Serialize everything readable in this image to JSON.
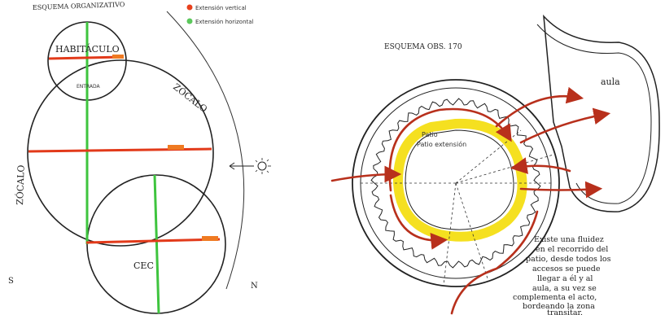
{
  "left_panel": {
    "title": "ESQUEMA ORGANIZATIVO",
    "legend": [
      {
        "label": "Extensión vertical",
        "color": "#e8401c"
      },
      {
        "label": "Extensión horizontal",
        "color": "#5cc85c"
      }
    ],
    "labels": {
      "habitaculo": "HABITÁCULO",
      "entrada": "ENTRADA",
      "zocalo_right": "ZÓCALO",
      "zocalo_left": "ZÓCALO",
      "cec": "CEC",
      "south": "S",
      "north": "N"
    },
    "sun_icon": "sun-icon",
    "colors": {
      "red": "#e23a1a",
      "green": "#3ec43e",
      "orange": "#ef7a22",
      "ink": "#222222"
    }
  },
  "right_panel": {
    "title": "ESQUEMA OBS. 170",
    "aula_label": "aula",
    "patio_label": "Patio extensión",
    "note_lines": [
      "Existe una fluidez",
      "en el recorrido del",
      "patio, desde todos los",
      "accesos se puede",
      "llegar a él y al",
      "aula, a su vez se",
      "complementa el acto,",
      "bordeando la zona",
      "transitar."
    ],
    "colors": {
      "red": "#b8301c",
      "yellow": "#f5e020",
      "ink": "#222222"
    }
  }
}
